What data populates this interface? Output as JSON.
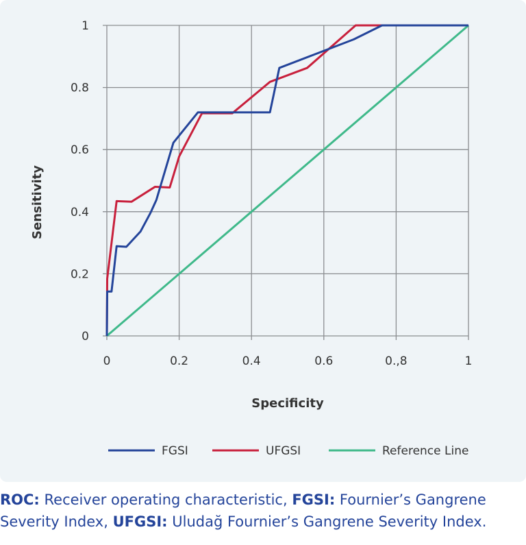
{
  "chart_data": {
    "type": "line",
    "xlabel": "Specificity",
    "ylabel": "Sensitivity",
    "xlim": [
      0,
      1
    ],
    "ylim": [
      0,
      1
    ],
    "x_ticks": [
      {
        "v": 0,
        "label": "0"
      },
      {
        "v": 0.2,
        "label": "0.2"
      },
      {
        "v": 0.4,
        "label": "0.4"
      },
      {
        "v": 0.6,
        "label": "0.6"
      },
      {
        "v": 0.8,
        "label": "0.,8"
      },
      {
        "v": 1,
        "label": "1"
      }
    ],
    "y_ticks": [
      {
        "v": 0,
        "label": "0"
      },
      {
        "v": 0.2,
        "label": "0.2"
      },
      {
        "v": 0.4,
        "label": "0.4"
      },
      {
        "v": 0.6,
        "label": "0.6"
      },
      {
        "v": 0.8,
        "label": "0.8"
      },
      {
        "v": 1,
        "label": "1"
      }
    ],
    "grid": true,
    "legend": "bottom",
    "series": [
      {
        "name": "FGSI",
        "color": "#24449a",
        "points": [
          [
            0,
            0
          ],
          [
            0.001,
            0.143
          ],
          [
            0.013,
            0.143
          ],
          [
            0.027,
            0.289
          ],
          [
            0.054,
            0.287
          ],
          [
            0.093,
            0.336
          ],
          [
            0.121,
            0.397
          ],
          [
            0.137,
            0.438
          ],
          [
            0.184,
            0.622
          ],
          [
            0.252,
            0.72
          ],
          [
            0.451,
            0.72
          ],
          [
            0.477,
            0.863
          ],
          [
            0.683,
            0.955
          ],
          [
            0.761,
            1
          ],
          [
            1,
            1
          ]
        ]
      },
      {
        "name": "UFGSI",
        "color": "#c8203c",
        "points": [
          [
            0,
            0
          ],
          [
            0.001,
            0.184
          ],
          [
            0.027,
            0.434
          ],
          [
            0.068,
            0.432
          ],
          [
            0.133,
            0.48
          ],
          [
            0.174,
            0.478
          ],
          [
            0.2,
            0.578
          ],
          [
            0.263,
            0.717
          ],
          [
            0.347,
            0.717
          ],
          [
            0.451,
            0.818
          ],
          [
            0.554,
            0.863
          ],
          [
            0.688,
            1
          ],
          [
            1,
            1
          ]
        ]
      },
      {
        "name": "Reference Line",
        "color": "#3fb98a",
        "points": [
          [
            0,
            0
          ],
          [
            1,
            1
          ]
        ]
      }
    ]
  },
  "caption": {
    "roc_abbr": "ROC:",
    "roc_text": " Receiver operating characteristic, ",
    "fgsi_abbr": "FGSI:",
    "fgsi_text": " Fournier’s Gangrene Severity Index, ",
    "ufgsi_abbr": "UFGSI:",
    "ufgsi_text": " Uludağ Fournier’s Gangrene Severity Index."
  }
}
